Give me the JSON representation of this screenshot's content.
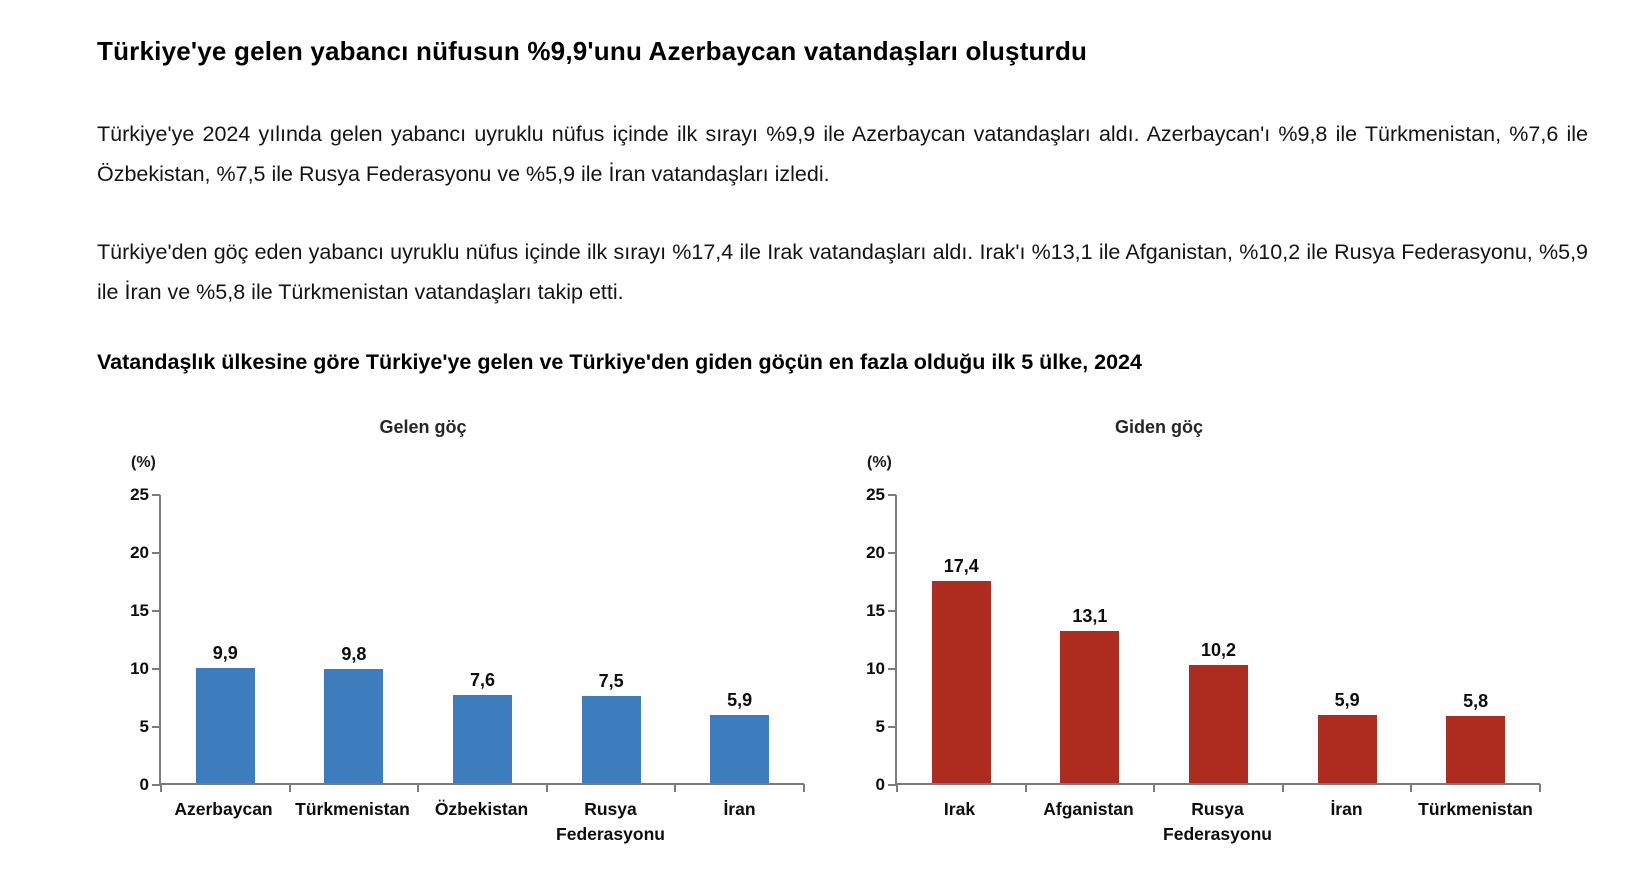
{
  "page": {
    "title": "Türkiye'ye gelen yabancı nüfusun %9,9'unu Azerbaycan vatandaşları oluşturdu",
    "paragraph_incoming": "Türkiye'ye 2024 yılında gelen yabancı uyruklu nüfus içinde ilk sırayı %9,9 ile Azerbaycan vatandaşları aldı. Azerbaycan'ı %9,8 ile Türkmenistan, %7,6 ile Özbekistan, %7,5 ile Rusya Federasyonu ve %5,9 ile İran vatandaşları izledi.",
    "paragraph_outgoing": "Türkiye'den göç eden yabancı uyruklu nüfus içinde ilk sırayı %17,4 ile Irak vatandaşları aldı. Irak'ı %13,1 ile Afganistan, %10,2 ile Rusya Federasyonu, %5,9 ile İran ve %5,8 ile Türkmenistan vatandaşları takip etti.",
    "chart_section_title": "Vatandaşlık ülkesine göre Türkiye'ye gelen ve Türkiye'den giden göçün en fazla olduğu ilk 5 ülke, 2024"
  },
  "chart_data": [
    {
      "type": "bar",
      "title": "Gelen göç",
      "unit_label": "(%)",
      "categories": [
        "Azerbaycan",
        "Türkmenistan",
        "Özbekistan",
        "Rusya Federasyonu",
        "İran"
      ],
      "values": [
        9.9,
        9.8,
        7.6,
        7.5,
        5.9
      ],
      "value_labels": [
        "9,9",
        "9,8",
        "7,6",
        "7,5",
        "5,9"
      ],
      "bar_color": "#3D7DBE",
      "ylim": [
        0,
        25
      ],
      "yticks": [
        0,
        5,
        10,
        15,
        20,
        25
      ],
      "grid": false,
      "legend": false
    },
    {
      "type": "bar",
      "title": "Giden göç",
      "unit_label": "(%)",
      "categories": [
        "Irak",
        "Afganistan",
        "Rusya Federasyonu",
        "İran",
        "Türkmenistan"
      ],
      "values": [
        17.4,
        13.1,
        10.2,
        5.9,
        5.8
      ],
      "value_labels": [
        "17,4",
        "13,1",
        "10,2",
        "5,9",
        "5,8"
      ],
      "bar_color": "#AE2B20",
      "ylim": [
        0,
        25
      ],
      "yticks": [
        0,
        5,
        10,
        15,
        20,
        25
      ],
      "grid": false,
      "legend": false
    }
  ],
  "colors": {
    "incoming_bar": "#3D7DBE",
    "outgoing_bar": "#AE2B20",
    "axis": "#7b7b7b",
    "text": "#111111"
  }
}
